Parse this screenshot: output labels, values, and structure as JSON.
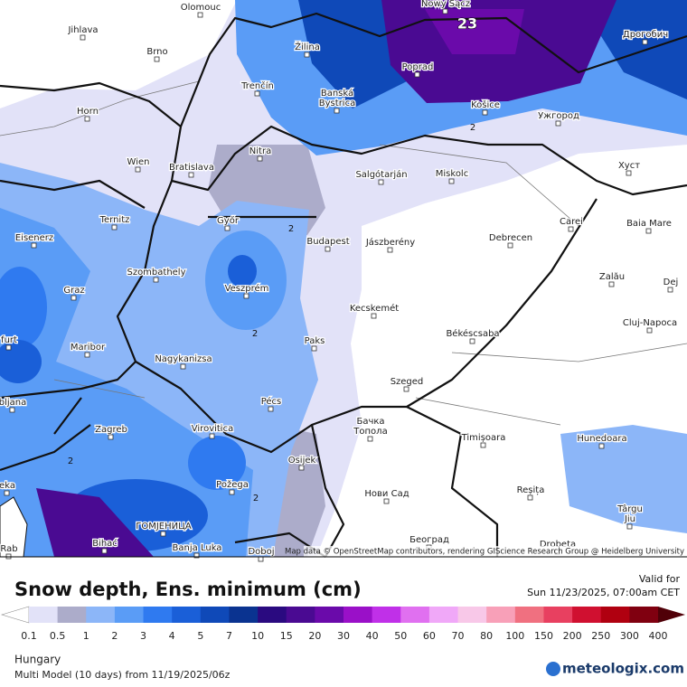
{
  "map": {
    "labels": [
      "Olomouc",
      "Jihlava",
      "Brno",
      "Žilina",
      "Nowy Sącz",
      "Дрогобич",
      "Poprad",
      "Trenčín",
      "Banská\nBystrica",
      "Košice",
      "Ужгород",
      "Horn",
      "Nitra",
      "Wien",
      "Bratislava",
      "Salgótarján",
      "Miskolc",
      "Хуст",
      "Ternitz",
      "Győr",
      "Budapest",
      "Jászberény",
      "Debrecen",
      "Carei",
      "Baia Mare",
      "Eisenerz",
      "Szombathely",
      "Graz",
      "Veszprém",
      "Zalău",
      "Dej",
      "Kecskemét",
      "Cluj-Napoca",
      "Paks",
      "Békéscsaba",
      "Maribor",
      "Nagykanizsa",
      "Szeged",
      "Pécs",
      "Zagreb",
      "Virovitica",
      "Бачка\nТопола",
      "Timișoara",
      "Hunedoara",
      "Osijek",
      "Požega",
      "Нови Сад",
      "Reșița",
      "Târgu\nJiu",
      "Bihać",
      "ГОМЈЕНИЦА",
      "Banja Luka",
      "Doboj",
      "Београд",
      "Drobeta",
      "furt",
      "bljana",
      "eka",
      "Rab"
    ],
    "contour_labels": [
      "23",
      "2",
      "2",
      "2",
      "2",
      "2"
    ],
    "attribution": "Map data © OpenStreetMap contributors, rendering GIScience Research Group @ Heidelberg University"
  },
  "legend": {
    "title": "Snow depth, Ens. minimum (cm)",
    "ticks": [
      0.1,
      0.5,
      1,
      2,
      3,
      4,
      5,
      7,
      10,
      15,
      20,
      30,
      40,
      50,
      60,
      70,
      80,
      100,
      150,
      200,
      250,
      300,
      400
    ],
    "colors": [
      "#ffffff",
      "#e2e2f8",
      "#acacca",
      "#8cb6f8",
      "#5a9cf6",
      "#2f7af0",
      "#1a5fd8",
      "#0f49b8",
      "#0a3390",
      "#2a0a80",
      "#4a0a92",
      "#6a0aaa",
      "#9a10c8",
      "#c030e8",
      "#e070f0",
      "#f0a8f8",
      "#f8c8e8",
      "#f8a0b8",
      "#f07080",
      "#e84060",
      "#d01030",
      "#b00010",
      "#800010",
      "#500008"
    ]
  },
  "info": {
    "valid_label": "Valid for",
    "valid_time": "Sun 11/23/2025, 07:00am CET",
    "region": "Hungary",
    "model": "Multi Model (10 days) from 11/19/2025/06z",
    "brand": "meteologix.com"
  }
}
